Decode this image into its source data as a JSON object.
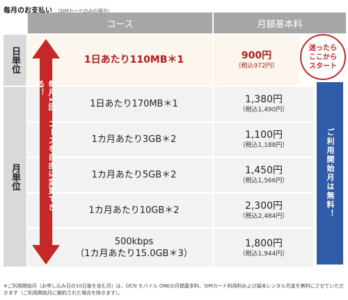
{
  "title": "毎月のお支払い",
  "title_note": "（SIMカードのみの場合）",
  "headers": {
    "course": "コース",
    "price": "月額基本料"
  },
  "side_labels": {
    "daily": "日単位",
    "monthly": "月単位"
  },
  "rows": [
    {
      "course_line1": "1日あたり110MB＊1",
      "course_line2": "",
      "price": "900円",
      "price_tax": "（税込972円）"
    },
    {
      "course_line1": "1日あたり170MB＊1",
      "course_line2": "",
      "price": "1,380円",
      "price_tax": "（税込1,490円）"
    },
    {
      "course_line1": "1カ月あたり3GB＊2",
      "course_line2": "",
      "price": "1,100円",
      "price_tax": "（税込1,188円）"
    },
    {
      "course_line1": "1カ月あたり5GB＊2",
      "course_line2": "",
      "price": "1,450円",
      "price_tax": "（税込1,566円）"
    },
    {
      "course_line1": "1カ月あたり10GB＊2",
      "course_line2": "",
      "price": "2,300円",
      "price_tax": "（税込2,484円）"
    },
    {
      "course_line1": "500kbps",
      "course_line2": "（1カ月あたり15.0GB＊3）",
      "price": "1,800円",
      "price_tax": "（税込1,944円）"
    }
  ],
  "arrow_text": "毎月1回、コースを自由に変更できる！",
  "badge_lines": [
    "迷ったら",
    "ここから",
    "スタート"
  ],
  "banner_text": "ご利用開始月は無料！",
  "footnote": "※ご利用開始月（お申し込み日の10日後を含む月）は、OCN モバイル ONEの月額基本料、SIMカード利用料および端末レンタル代金を無料にさせていただきます（ご利用開始月に解約された場合を除きます）。",
  "colors": {
    "accent_red": "#c62828",
    "banner_blue": "#2f5ba8",
    "header_gray": "#a6a6a6"
  }
}
